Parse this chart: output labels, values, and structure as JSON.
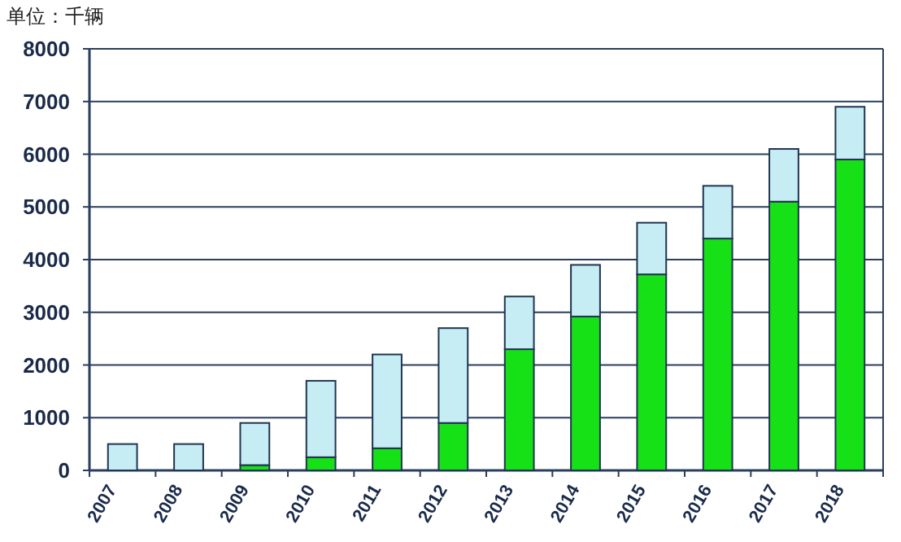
{
  "chart_data": {
    "type": "bar",
    "stacked": true,
    "ylabel": "单位：千辆",
    "categories": [
      "2007",
      "2008",
      "2009",
      "2010",
      "2011",
      "2012",
      "2013",
      "2014",
      "2015",
      "2016",
      "2017",
      "2018"
    ],
    "series": [
      {
        "color": "#16e016",
        "values": [
          0,
          0,
          100,
          250,
          420,
          900,
          2300,
          2920,
          3720,
          4400,
          5100,
          5900
        ]
      },
      {
        "color": "#c6ecf4",
        "values": [
          500,
          500,
          800,
          1450,
          1780,
          1800,
          1000,
          980,
          980,
          1000,
          1000,
          1000
        ]
      }
    ],
    "ylim": [
      0,
      8000
    ],
    "yticks": [
      0,
      1000,
      2000,
      3000,
      4000,
      5000,
      6000,
      7000,
      8000
    ],
    "grid": "y"
  }
}
